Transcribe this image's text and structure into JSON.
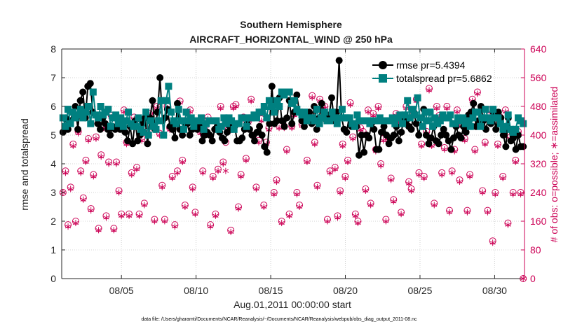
{
  "chart_data": {
    "type": "line",
    "title": "Southern Hemisphere",
    "subtitle": "AIRCRAFT_HORIZONTAL_WIND @ 250 hPa",
    "xlabel": "Aug.01,2011 00:00:00 start",
    "ylabel": "rmse and totalspread",
    "ylabel_right": "# of obs: o=possible; ∗=assimilated",
    "footnote": "data file: /Users/gharamti/Documents/NCAR/Reanalysis/~/Documents/NCAR/Reanalysis/webpub/obs_diag_output_2011-08.nc",
    "xlim": [
      1,
      32
    ],
    "ylim": [
      0,
      8
    ],
    "ylim_right": [
      0,
      640
    ],
    "x_ticks": [
      5,
      10,
      15,
      20,
      25,
      30
    ],
    "x_tick_labels": [
      "08/05",
      "08/10",
      "08/15",
      "08/20",
      "08/25",
      "08/30"
    ],
    "y_ticks": [
      0,
      1,
      2,
      3,
      4,
      5,
      6,
      7,
      8
    ],
    "y_ticks_right": [
      0,
      80,
      160,
      240,
      320,
      400,
      480,
      560,
      640
    ],
    "grid": true,
    "legend_position": "top-right",
    "colors": {
      "rmse": "#000000",
      "totalspread": "#008080",
      "obs": "#cc0055",
      "grid": "#d4d4d4"
    },
    "series": [
      {
        "name": "rmse pr=5.4394",
        "marker": "circle",
        "values": [
          5.1,
          5.6,
          5.2,
          5.5,
          5.8,
          6.0,
          5.2,
          6.2,
          6.5,
          5.6,
          6.7,
          6.8,
          5.8,
          5.7,
          5.4,
          5.2,
          5.6,
          5.4,
          5.2,
          5.0,
          5.3,
          5.2,
          5.6,
          5.2,
          5.4,
          5.1,
          4.8,
          5.3,
          4.7,
          5.5,
          4.8,
          5.0,
          5.4,
          5.6,
          4.7,
          5.6,
          6.2,
          5.2,
          5.8,
          7.0,
          5.5,
          5.6,
          5.9,
          5.3,
          5.2,
          4.9,
          6.1,
          5.2,
          5.0,
          5.4,
          5.4,
          5.0,
          5.2,
          5.5,
          5.2,
          5.3,
          4.8,
          5.0,
          5.1,
          5.0,
          4.8,
          5.2,
          5.3,
          5.1,
          4.9,
          4.8,
          5.1,
          5.3,
          5.2,
          5.3,
          4.8,
          4.8,
          4.9,
          5.2,
          5.4,
          5.2,
          5.0,
          4.8,
          5.1,
          5.3,
          5.0,
          4.6,
          4.4,
          5.4,
          6.7,
          5.4,
          5.5,
          6.3,
          5.5,
          5.3,
          5.6,
          6.2,
          5.4,
          5.8,
          6.4,
          5.8,
          5.5,
          5.3,
          5.6,
          5.8,
          5.4,
          6.0,
          5.2,
          5.6,
          6.1,
          5.8,
          5.5,
          5.7,
          6.3,
          5.5,
          5.8,
          7.6,
          5.6,
          5.2,
          5.1,
          5.6,
          5.3,
          5.3,
          5.3,
          4.3,
          5.0,
          4.4,
          5.0,
          4.9,
          5.4,
          5.2,
          4.5,
          4.5,
          5.1,
          5.3,
          5.0,
          4.7,
          4.9,
          5.0,
          5.3,
          4.8,
          5.1,
          5.6,
          5.5,
          5.3,
          5.2,
          5.8,
          5.4,
          5.0,
          5.6,
          5.9,
          5.0,
          4.7,
          4.9,
          5.3,
          4.8,
          4.7,
          5.0,
          5.2,
          5.0,
          4.8,
          4.5,
          4.9,
          5.3,
          5.0,
          4.9,
          5.3,
          5.1,
          5.7,
          5.8,
          6.1,
          5.3,
          5.5,
          6.0,
          5.5,
          5.2,
          5.6,
          5.4,
          5.8,
          5.2,
          5.8,
          5.6,
          5.0,
          4.6,
          5.6,
          4.8,
          4.9,
          4.5,
          5.0,
          4.6,
          4.6
        ]
      },
      {
        "name": "totalspread pr=5.6862",
        "marker": "square",
        "values": [
          5.6,
          5.3,
          5.9,
          5.4,
          5.8,
          5.6,
          5.7,
          5.9,
          5.6,
          5.8,
          6.0,
          5.4,
          6.5,
          5.7,
          5.6,
          6.0,
          5.7,
          5.8,
          5.9,
          5.3,
          5.6,
          5.7,
          5.4,
          5.6,
          5.3,
          5.5,
          5.8,
          5.4,
          5.3,
          5.3,
          5.6,
          5.2,
          5.1,
          5.8,
          5.0,
          5.5,
          5.3,
          5.2,
          5.5,
          6.2,
          5.0,
          6.2,
          6.7,
          5.8,
          5.5,
          5.4,
          5.9,
          5.5,
          5.2,
          5.8,
          5.5,
          5.6,
          5.3,
          5.5,
          5.5,
          5.6,
          5.2,
          5.4,
          5.5,
          5.5,
          5.5,
          5.5,
          5.2,
          5.3,
          5.6,
          5.4,
          5.6,
          5.5,
          5.2,
          5.4,
          5.4,
          5.6,
          5.6,
          5.3,
          5.6,
          5.6,
          5.7,
          5.6,
          5.8,
          5.8,
          6.0,
          5.6,
          6.2,
          6.0,
          5.8,
          6.2,
          6.0,
          6.5,
          6.4,
          6.5,
          6.5,
          6.1,
          6.2,
          5.9,
          5.8,
          5.7,
          5.8,
          5.5,
          5.6,
          5.6,
          5.5,
          5.9,
          5.4,
          5.6,
          5.8,
          5.5,
          5.5,
          5.8,
          5.6,
          5.4,
          5.6,
          5.9,
          5.6,
          5.6,
          5.6,
          5.4,
          5.3,
          5.7,
          5.5,
          5.5,
          5.5,
          5.5,
          5.4,
          5.5,
          5.5,
          5.5,
          5.6,
          5.5,
          5.5,
          5.5,
          5.5,
          5.6,
          5.4,
          5.6,
          5.7,
          5.4,
          5.7,
          6.2,
          5.6,
          5.9,
          5.7,
          6.3,
          5.6,
          5.3,
          5.8,
          5.5,
          5.8,
          5.3,
          5.6,
          5.4,
          5.5,
          5.7,
          5.6,
          5.6,
          5.7,
          5.4,
          5.4,
          5.6,
          5.5,
          5.6,
          5.4,
          5.5,
          5.3,
          5.6,
          5.8,
          5.8,
          5.3,
          5.6,
          5.9,
          5.6,
          5.5,
          5.9,
          5.6,
          5.6,
          5.4,
          5.2,
          5.3,
          5.7,
          5.2,
          5.1,
          5.2,
          5.6,
          5.5,
          5.4
        ]
      },
      {
        "name": "# of obs possible",
        "marker": "open-circle",
        "axis": "right",
        "values": [
          240,
          300,
          150,
          255,
          375,
          160,
          410,
          300,
          225,
          330,
          390,
          195,
          290,
          395,
          140,
          345,
          425,
          175,
          325,
          455,
          140,
          325,
          245,
          180,
          470,
          380,
          180,
          295,
          450,
          310,
          180,
          390,
          210,
          410,
          460,
          425,
          165,
          480,
          405,
          260,
          165,
          480,
          420,
          285,
          150,
          300,
          495,
          330,
          205,
          445,
          470,
          255,
          185,
          430,
          410,
          300,
          425,
          450,
          150,
          285,
          180,
          305,
          480,
          325,
          380,
          415,
          135,
          480,
          485,
          200,
          290,
          450,
          335,
          440,
          500,
          400,
          255,
          385,
          445,
          205,
          380,
          420,
          480,
          240,
          275,
          425,
          160,
          425,
          360,
          180,
          425,
          460,
          240,
          205,
          430,
          450,
          330,
          440,
          510,
          380,
          260,
          500,
          480,
          480,
          165,
          300,
          450,
          310,
          175,
          245,
          375,
          285,
          330,
          490,
          395,
          180,
          160,
          420,
          410,
          250,
          470,
          210,
          460,
          360,
          480,
          320,
          390,
          165,
          390,
          280,
          220,
          460,
          440,
          185,
          440,
          480,
          270,
          250,
          460,
          500,
          295,
          375,
          285,
          410,
          530,
          375,
          210,
          480,
          455,
          295,
          365,
          480,
          190,
          300,
          360,
          470,
          275,
          430,
          390,
          190,
          290,
          500,
          360,
          520,
          430,
          245,
          380,
          190,
          470,
          105,
          240,
          375,
          450,
          285,
          470,
          155,
          395,
          240,
          330,
          410,
          240,
          0
        ]
      },
      {
        "name": "# of obs assimilated",
        "marker": "asterisk",
        "axis": "right",
        "values": [
          240,
          295,
          145,
          250,
          370,
          155,
          405,
          295,
          220,
          325,
          385,
          190,
          285,
          390,
          135,
          340,
          420,
          170,
          320,
          450,
          135,
          320,
          240,
          175,
          465,
          375,
          175,
          290,
          445,
          305,
          175,
          385,
          205,
          405,
          455,
          420,
          160,
          475,
          400,
          255,
          160,
          475,
          415,
          280,
          145,
          295,
          490,
          325,
          200,
          440,
          465,
          250,
          180,
          425,
          405,
          295,
          420,
          445,
          145,
          280,
          175,
          300,
          475,
          320,
          300,
          410,
          130,
          475,
          480,
          195,
          285,
          445,
          330,
          435,
          495,
          395,
          250,
          380,
          440,
          200,
          375,
          415,
          475,
          235,
          270,
          420,
          155,
          420,
          355,
          175,
          420,
          455,
          235,
          200,
          425,
          445,
          325,
          435,
          505,
          375,
          255,
          495,
          475,
          475,
          160,
          295,
          445,
          305,
          170,
          240,
          370,
          280,
          325,
          485,
          390,
          175,
          155,
          415,
          405,
          245,
          465,
          205,
          455,
          355,
          475,
          315,
          385,
          160,
          385,
          275,
          215,
          455,
          435,
          180,
          435,
          475,
          265,
          245,
          455,
          495,
          290,
          370,
          280,
          405,
          525,
          370,
          205,
          475,
          450,
          290,
          360,
          475,
          185,
          295,
          355,
          465,
          270,
          425,
          385,
          185,
          285,
          495,
          355,
          515,
          425,
          240,
          375,
          185,
          465,
          100,
          235,
          370,
          445,
          280,
          465,
          150,
          390,
          235,
          325,
          405,
          235,
          0
        ]
      }
    ]
  }
}
